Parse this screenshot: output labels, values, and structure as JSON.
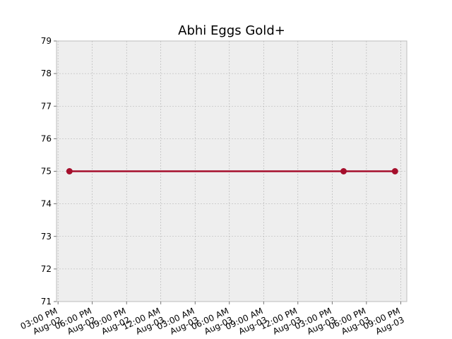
{
  "chart_data": {
    "type": "line",
    "title": "Abhi Eggs Gold+",
    "xlabel": "",
    "ylabel": "",
    "ylim": [
      71,
      79
    ],
    "yticks": [
      71,
      72,
      73,
      74,
      75,
      76,
      77,
      78,
      79
    ],
    "xlim": [
      "Aug-02 14:52",
      "Aug-03 21:32"
    ],
    "xticks": [
      {
        "time": "Aug-02 15:00",
        "label": "03:00 PM\nAug-02"
      },
      {
        "time": "Aug-02 18:00",
        "label": "06:00 PM\nAug-02"
      },
      {
        "time": "Aug-02 21:00",
        "label": "09:00 PM\nAug-02"
      },
      {
        "time": "Aug-03 00:00",
        "label": "12:00 AM\nAug-03"
      },
      {
        "time": "Aug-03 03:00",
        "label": "03:00 AM\nAug-03"
      },
      {
        "time": "Aug-03 06:00",
        "label": "06:00 AM\nAug-03"
      },
      {
        "time": "Aug-03 09:00",
        "label": "09:00 AM\nAug-03"
      },
      {
        "time": "Aug-03 12:00",
        "label": "12:00 PM\nAug-03"
      },
      {
        "time": "Aug-03 15:00",
        "label": "03:00 PM\nAug-03"
      },
      {
        "time": "Aug-03 18:00",
        "label": "06:00 PM\nAug-03"
      },
      {
        "time": "Aug-03 21:00",
        "label": "09:00 PM\nAug-03"
      }
    ],
    "grid": true,
    "series": [
      {
        "color": "#a50f2c",
        "points": [
          {
            "time": "Aug-02 16:00",
            "value": 75
          },
          {
            "time": "Aug-03 16:00",
            "value": 75
          },
          {
            "time": "Aug-03 20:30",
            "value": 75
          }
        ]
      }
    ],
    "colors": {
      "plot_bg": "#eeeeee",
      "grid": "#b0b0b0",
      "axes_edge": "#bcbcbc",
      "line": "#a50f2c"
    }
  }
}
